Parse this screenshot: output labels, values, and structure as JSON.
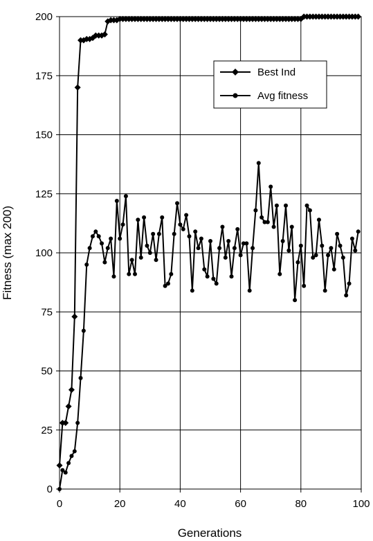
{
  "chart_data": {
    "type": "line",
    "title": "",
    "xlabel": "Generations",
    "ylabel": "Fitness (max 200)",
    "xlim": [
      0,
      100
    ],
    "ylim": [
      0,
      200
    ],
    "xticks": [
      0,
      20,
      40,
      60,
      80,
      100
    ],
    "yticks": [
      0,
      25,
      50,
      75,
      100,
      125,
      150,
      175,
      200
    ],
    "grid": true,
    "legend_position": "upper-right",
    "colors": {
      "line": "#000000",
      "background": "#ffffff"
    },
    "series": [
      {
        "name": "Best Ind",
        "marker": "diamond",
        "x": [
          0,
          1,
          2,
          3,
          4,
          5,
          6,
          7,
          8,
          9,
          10,
          11,
          12,
          13,
          14,
          15,
          16,
          17,
          18,
          19,
          20,
          21,
          22,
          23,
          24,
          25,
          26,
          27,
          28,
          29,
          30,
          31,
          32,
          33,
          34,
          35,
          36,
          37,
          38,
          39,
          40,
          41,
          42,
          43,
          44,
          45,
          46,
          47,
          48,
          49,
          50,
          51,
          52,
          53,
          54,
          55,
          56,
          57,
          58,
          59,
          60,
          61,
          62,
          63,
          64,
          65,
          66,
          67,
          68,
          69,
          70,
          71,
          72,
          73,
          74,
          75,
          76,
          77,
          78,
          79,
          80,
          81,
          82,
          83,
          84,
          85,
          86,
          87,
          88,
          89,
          90,
          91,
          92,
          93,
          94,
          95,
          96,
          97,
          98,
          99
        ],
        "values": [
          10,
          28,
          28,
          35,
          42,
          73,
          170,
          190,
          190,
          190.5,
          190.5,
          191,
          192,
          192,
          192,
          192.5,
          198,
          198.5,
          198.5,
          198.5,
          199,
          199,
          199,
          199,
          199,
          199,
          199,
          199,
          199,
          199,
          199,
          199,
          199,
          199,
          199,
          199,
          199,
          199,
          199,
          199,
          199,
          199,
          199,
          199,
          199,
          199,
          199,
          199,
          199,
          199,
          199,
          199,
          199,
          199,
          199,
          199,
          199,
          199,
          199,
          199,
          199,
          199,
          199,
          199,
          199,
          199,
          199,
          199,
          199,
          199,
          199,
          199,
          199,
          199,
          199,
          199,
          199,
          199,
          199,
          199,
          199,
          200,
          200,
          200,
          200,
          200,
          200,
          200,
          200,
          200,
          200,
          200,
          200,
          200,
          200,
          200,
          200,
          200,
          200,
          200
        ]
      },
      {
        "name": "Avg fitness",
        "marker": "circle",
        "x": [
          0,
          1,
          2,
          3,
          4,
          5,
          6,
          7,
          8,
          9,
          10,
          11,
          12,
          13,
          14,
          15,
          16,
          17,
          18,
          19,
          20,
          21,
          22,
          23,
          24,
          25,
          26,
          27,
          28,
          29,
          30,
          31,
          32,
          33,
          34,
          35,
          36,
          37,
          38,
          39,
          40,
          41,
          42,
          43,
          44,
          45,
          46,
          47,
          48,
          49,
          50,
          51,
          52,
          53,
          54,
          55,
          56,
          57,
          58,
          59,
          60,
          61,
          62,
          63,
          64,
          65,
          66,
          67,
          68,
          69,
          70,
          71,
          72,
          73,
          74,
          75,
          76,
          77,
          78,
          79,
          80,
          81,
          82,
          83,
          84,
          85,
          86,
          87,
          88,
          89,
          90,
          91,
          92,
          93,
          94,
          95,
          96,
          97,
          98,
          99
        ],
        "values": [
          0,
          8,
          7,
          11,
          14,
          16,
          28,
          47,
          67,
          95,
          102,
          107,
          109,
          107,
          104,
          96,
          102,
          106,
          90,
          122,
          106,
          112,
          124,
          91,
          97,
          91,
          114,
          98,
          115,
          103,
          100,
          108,
          97,
          108,
          115,
          86,
          87,
          91,
          108,
          121,
          112,
          110,
          116,
          107,
          84,
          109,
          102,
          106,
          93,
          90,
          105,
          89,
          87,
          102,
          111,
          98,
          105,
          90,
          102,
          110,
          99,
          104,
          104,
          84,
          102,
          118,
          138,
          115,
          113,
          113,
          128,
          111,
          120,
          91,
          105,
          120,
          101,
          111,
          80,
          96,
          103,
          86,
          120,
          118,
          98,
          99,
          114,
          103,
          84,
          99,
          102,
          93,
          108,
          103,
          98,
          82,
          87,
          106,
          101,
          109
        ]
      }
    ]
  }
}
